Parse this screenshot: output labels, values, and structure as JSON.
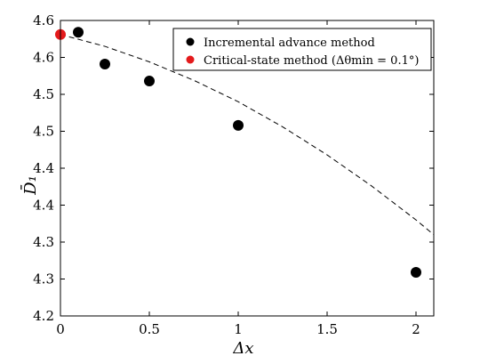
{
  "chart_data": {
    "type": "scatter",
    "xlabel": "Δx",
    "ylabel": "D̄₁",
    "xlim": [
      0,
      2.1
    ],
    "ylim": [
      4.2,
      4.6
    ],
    "xticks": [
      0,
      0.5,
      1,
      1.5,
      2
    ],
    "xtick_labels": [
      "0",
      "0.5",
      "1",
      "1.5",
      "2"
    ],
    "yticks": [
      4.2,
      4.25,
      4.3,
      4.35,
      4.4,
      4.45,
      4.5,
      4.55,
      4.6
    ],
    "ytick_labels": [
      "4.2",
      "4.3",
      "4.3",
      "4.4",
      "4.4",
      "4.5",
      "4.5",
      "4.6",
      "4.6"
    ],
    "legend_position": "top-right",
    "series": [
      {
        "name": "Incremental advance method",
        "color": "#000000",
        "x": [
          0.1,
          0.25,
          0.5,
          1.0,
          2.0
        ],
        "y": [
          4.584,
          4.541,
          4.518,
          4.458,
          4.259
        ]
      },
      {
        "name": "Critical-state method (Δθmin = 0.1°)",
        "color": "#e41a1c",
        "x": [
          0.0
        ],
        "y": [
          4.581
        ]
      }
    ],
    "fit_line": {
      "style": "dashed",
      "color": "#000000",
      "x": [
        0,
        0.25,
        0.5,
        0.75,
        1.0,
        1.25,
        1.5,
        1.75,
        2.0,
        2.1
      ],
      "y": [
        4.581,
        4.565,
        4.544,
        4.519,
        4.49,
        4.456,
        4.418,
        4.376,
        4.33,
        4.31
      ]
    }
  }
}
